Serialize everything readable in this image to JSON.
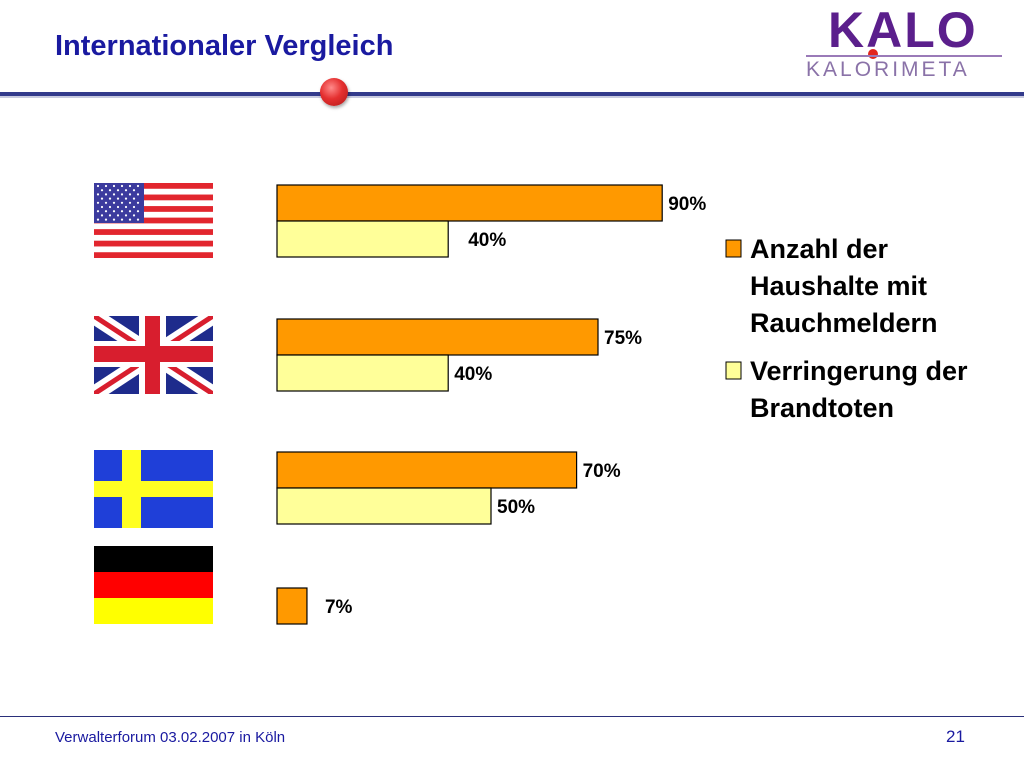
{
  "header": {
    "title": "Internationaler Vergleich"
  },
  "logo": {
    "main": "KALO",
    "sub": "KALORIMETA"
  },
  "chart_data": {
    "type": "bar",
    "orientation": "horizontal",
    "categories": [
      "USA",
      "United Kingdom",
      "Sweden",
      "Germany"
    ],
    "series": [
      {
        "name": "Anzahl der Haushalte mit Rauchmeldern",
        "values": [
          90,
          75,
          70,
          7
        ],
        "color": "#ff9900"
      },
      {
        "name": "Verringerung der Brandtoten",
        "values": [
          40,
          40,
          50,
          null
        ],
        "color": "#ffff99"
      }
    ],
    "value_labels": [
      [
        "90%",
        "75%",
        "70%",
        "7%"
      ],
      [
        "40%",
        "40%",
        "50%",
        null
      ]
    ],
    "legend_lines": [
      [
        "Anzahl der",
        "Haushalte mit",
        "Rauchmeldern"
      ],
      [
        "Verringerung der",
        "Brandtoten"
      ]
    ],
    "legend_position": "right",
    "xlim": [
      0,
      100
    ],
    "grid": false,
    "title": "",
    "xlabel": "",
    "ylabel": ""
  },
  "footer": {
    "text": "Verwalterforum 03.02.2007 in Köln",
    "page": "21"
  }
}
